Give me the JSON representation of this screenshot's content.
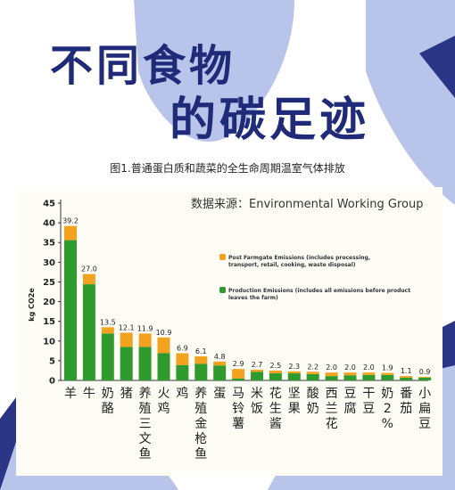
{
  "header": {
    "title_line1": "不同食物",
    "title_line2": "的碳足迹",
    "caption": "图1.普通蛋白质和蔬菜的全生命周期温室气体排放",
    "source": "数据来源：Environmental Working Group"
  },
  "colors": {
    "post_farmgate": "#f3a21f",
    "production": "#2f9a2e",
    "title": "#1f2a78",
    "background_shapes": "#b9c4ea"
  },
  "chart_data": {
    "type": "bar",
    "stacked": true,
    "ylabel": "kg CO2e",
    "ylim": [
      0,
      45
    ],
    "yticks": [
      0,
      5,
      10,
      15,
      20,
      25,
      30,
      35,
      40,
      45
    ],
    "grid": false,
    "legend_position": "right-middle",
    "categories": [
      "羊",
      "牛",
      "奶酪",
      "猪",
      "养殖三文鱼",
      "火鸡",
      "鸡",
      "养殖金枪鱼",
      "蛋",
      "马铃薯",
      "米饭",
      "花生酱",
      "坚果",
      "酸奶",
      "西兰花",
      "豆腐",
      "干豆",
      "奶2%",
      "番茄",
      "小扁豆"
    ],
    "totals": [
      39.2,
      27.0,
      13.5,
      12.1,
      11.9,
      10.9,
      6.9,
      6.1,
      4.8,
      2.9,
      2.7,
      2.5,
      2.3,
      2.2,
      2.0,
      2.0,
      2.0,
      1.9,
      1.1,
      0.9
    ],
    "total_labels": [
      "39.2",
      "27.0",
      "13.5",
      "12.1",
      "11.9",
      "10.9",
      "6.9",
      "6.1",
      "4.8",
      "2.9",
      "2.7",
      "2.5",
      "2.3",
      "2.2",
      "2.0",
      "2.0",
      "2.0",
      "1.9",
      "1.1",
      "0.9"
    ],
    "series": [
      {
        "name": "Production Emissions (includes all emissions before product leaves the farm)",
        "values": [
          35.6,
          24.4,
          11.9,
          8.5,
          8.5,
          6.9,
          3.9,
          4.2,
          3.8,
          0.5,
          2.2,
          1.8,
          1.8,
          1.6,
          1.1,
          1.3,
          1.4,
          1.4,
          0.7,
          0.7
        ]
      },
      {
        "name": "Post Farmgate Emissions (includes processing, transport, retail, cooking, waste disposal)",
        "values": [
          3.6,
          2.6,
          1.6,
          3.6,
          3.4,
          4.0,
          3.0,
          1.9,
          1.0,
          2.4,
          0.5,
          0.7,
          0.5,
          0.6,
          0.9,
          0.7,
          0.6,
          0.5,
          0.4,
          0.2
        ]
      }
    ]
  }
}
